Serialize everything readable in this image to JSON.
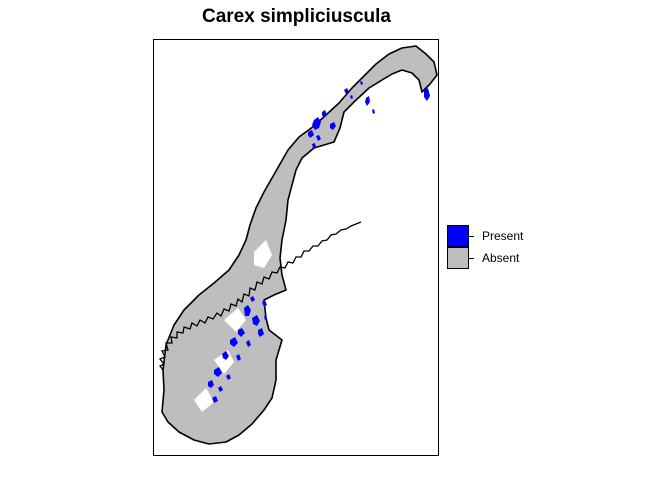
{
  "title": "Carex simpliciuscula",
  "legend": {
    "items": [
      {
        "label": "Present",
        "color": "#0000ff"
      },
      {
        "label": "Absent",
        "color": "#bebebe"
      }
    ]
  },
  "colors": {
    "present": "#0000ff",
    "absent": "#bebebe",
    "outline": "#000000",
    "background": "#ffffff"
  }
}
